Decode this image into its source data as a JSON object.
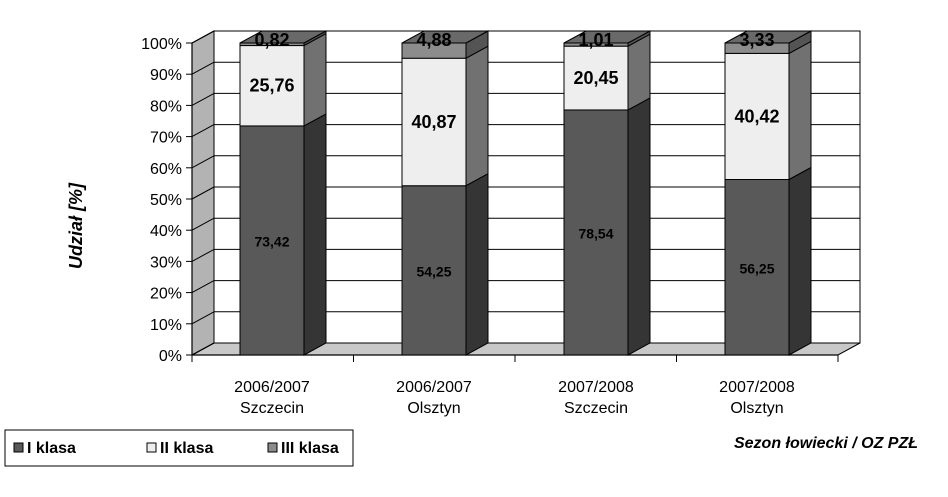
{
  "chart_data": {
    "type": "bar",
    "stacked": true,
    "three_d": true,
    "title": "",
    "ylabel": "Udział [%]",
    "xlabel": "Sezon łowiecki  /  OZ PZŁ",
    "ylim": [
      0,
      100
    ],
    "y_ticks": [
      "0%",
      "10%",
      "20%",
      "30%",
      "40%",
      "50%",
      "60%",
      "70%",
      "80%",
      "90%",
      "100%"
    ],
    "grid": true,
    "legend_position": "bottom-left",
    "categories": [
      [
        "2006/2007",
        "Szczecin"
      ],
      [
        "2006/2007",
        "Olsztyn"
      ],
      [
        "2007/2008",
        "Szczecin"
      ],
      [
        "2007/2008",
        "Olsztyn"
      ]
    ],
    "series": [
      {
        "name": "I klasa",
        "color": "#595959",
        "values": [
          73.42,
          54.25,
          78.54,
          56.25
        ],
        "labels": [
          "73,42",
          "54,25",
          "78,54",
          "56,25"
        ]
      },
      {
        "name": "II klasa",
        "color": "#eeeeee",
        "values": [
          25.76,
          40.87,
          20.45,
          40.42
        ],
        "labels": [
          "25,76",
          "40,87",
          "20,45",
          "40,42"
        ]
      },
      {
        "name": "III klasa",
        "color": "#8c8c8c",
        "values": [
          0.82,
          4.88,
          1.01,
          3.33
        ],
        "labels": [
          "0,82",
          "4,88",
          "1,01",
          "3,33"
        ]
      }
    ]
  }
}
